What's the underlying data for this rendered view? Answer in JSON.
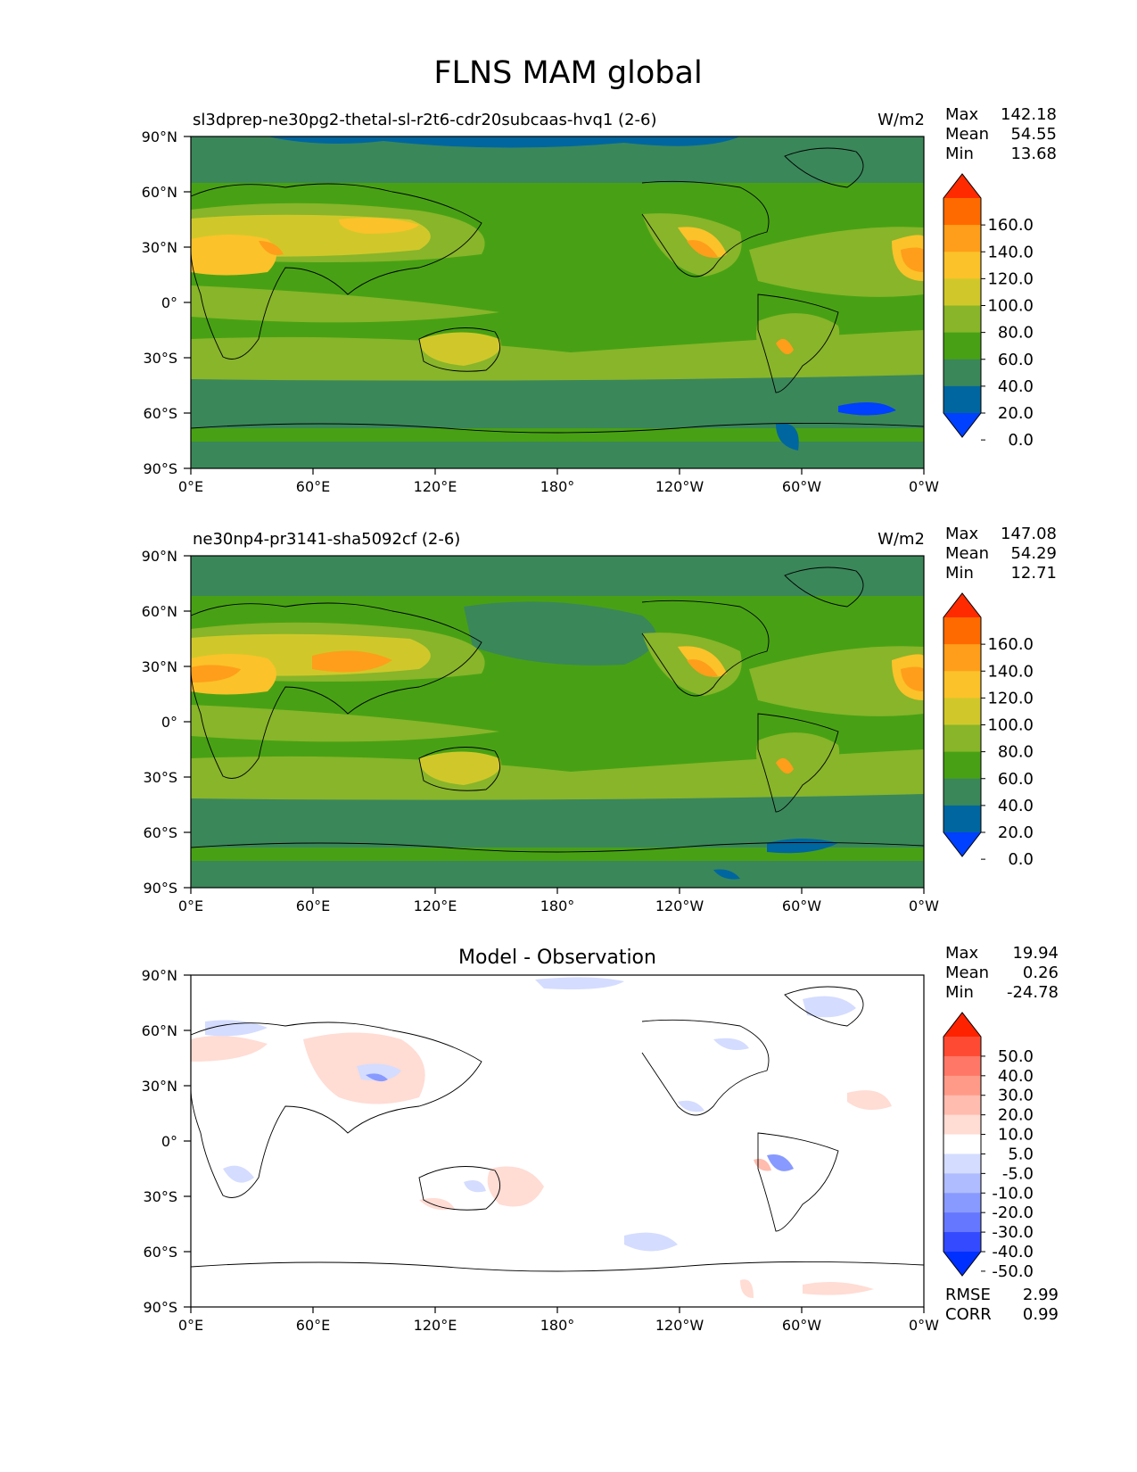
{
  "figure": {
    "title": "FLNS MAM global"
  },
  "axes": {
    "lat_ticks": [
      "90°N",
      "60°N",
      "30°N",
      "0°",
      "30°S",
      "60°S",
      "90°S"
    ],
    "lon_ticks": [
      "0°E",
      "60°E",
      "120°E",
      "180°",
      "120°W",
      "60°W",
      "0°W"
    ]
  },
  "panels": [
    {
      "kind": "field",
      "title": "sl3dprep-ne30pg2-thetal-sl-r2t6-cdr20subcaas-hvq1 (2-6)",
      "units": "W/m2",
      "stats": [
        {
          "label": "Max",
          "value": "142.18"
        },
        {
          "label": "Mean",
          "value": "54.55"
        },
        {
          "label": "Min",
          "value": "13.68"
        }
      ]
    },
    {
      "kind": "field",
      "title": "ne30np4-pr3141-sha5092cf (2-6)",
      "units": "W/m2",
      "stats": [
        {
          "label": "Max",
          "value": "147.08"
        },
        {
          "label": "Mean",
          "value": "54.29"
        },
        {
          "label": "Min",
          "value": "12.71"
        }
      ]
    },
    {
      "kind": "diff",
      "title": "Model - Observation",
      "units": "",
      "stats": [
        {
          "label": "Max",
          "value": "19.94"
        },
        {
          "label": "Mean",
          "value": "0.26"
        },
        {
          "label": "Min",
          "value": "-24.78"
        }
      ],
      "metrics": [
        {
          "label": "RMSE",
          "value": "2.99"
        },
        {
          "label": "CORR",
          "value": "0.99"
        }
      ]
    }
  ],
  "colorbars": {
    "field": {
      "labels": [
        "160.0",
        "140.0",
        "120.0",
        "100.0",
        "80.0",
        "60.0",
        "40.0",
        "20.0",
        "0.0"
      ],
      "colors": [
        "#ff2a00",
        "#ff6a00",
        "#ff9e1a",
        "#fbc22a",
        "#d0c82a",
        "#88b52a",
        "#48a114",
        "#3a875a",
        "#0066a0",
        "#0040ff"
      ]
    },
    "diff": {
      "labels": [
        "50.0",
        "40.0",
        "30.0",
        "20.0",
        "10.0",
        "5.0",
        "-5.0",
        "-10.0",
        "-20.0",
        "-30.0",
        "-40.0",
        "-50.0"
      ],
      "colors": [
        "#ff2200",
        "#ff4a33",
        "#ff7766",
        "#ff9a88",
        "#ffbcaf",
        "#ffdcd4",
        "#ffffff",
        "#d4dcff",
        "#afbcff",
        "#889aff",
        "#6677ff",
        "#334aff",
        "#0030ff"
      ]
    }
  }
}
